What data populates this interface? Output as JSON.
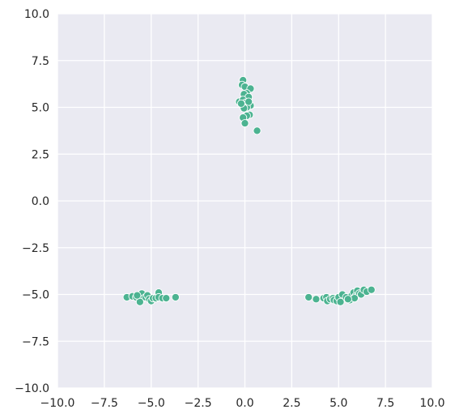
{
  "chart_data": {
    "type": "scatter",
    "title": "",
    "xlabel": "",
    "ylabel": "",
    "xlim": [
      -10,
      10
    ],
    "ylim": [
      -10,
      10
    ],
    "grid": true,
    "xticks": [
      "−10.0",
      "−7.5",
      "−5.0",
      "−2.5",
      "0.0",
      "2.5",
      "5.0",
      "7.5",
      "10.0"
    ],
    "yticks": [
      "−10.0",
      "−7.5",
      "−5.0",
      "−2.5",
      "0.0",
      "2.5",
      "5.0",
      "7.5",
      "10.0"
    ],
    "xtick_values": [
      -10,
      -7.5,
      -5,
      -2.5,
      0,
      2.5,
      5,
      7.5,
      10
    ],
    "ytick_values": [
      -10,
      -7.5,
      -5,
      -2.5,
      0,
      2.5,
      5,
      7.5,
      10
    ],
    "colors": {
      "background": "#eaeaf2",
      "grid": "#ffffff",
      "marker": "#4cb391",
      "marker_edge": "#ffffff"
    },
    "series": [
      {
        "points": [
          [
            -0.1,
            6.45
          ],
          [
            -0.15,
            6.2
          ],
          [
            0.0,
            6.1
          ],
          [
            0.3,
            6.0
          ],
          [
            0.1,
            5.75
          ],
          [
            -0.05,
            5.7
          ],
          [
            0.2,
            5.55
          ],
          [
            -0.3,
            5.3
          ],
          [
            -0.1,
            5.4
          ],
          [
            0.05,
            5.25
          ],
          [
            0.3,
            5.1
          ],
          [
            0.1,
            5.0
          ],
          [
            -0.05,
            4.95
          ],
          [
            -0.2,
            5.2
          ],
          [
            0.25,
            4.6
          ],
          [
            0.1,
            4.55
          ],
          [
            -0.1,
            4.45
          ],
          [
            0.0,
            4.15
          ],
          [
            0.65,
            3.75
          ],
          [
            0.2,
            5.3
          ],
          [
            -6.3,
            -5.15
          ],
          [
            -6.0,
            -5.1
          ],
          [
            -5.8,
            -5.15
          ],
          [
            -5.6,
            -5.05
          ],
          [
            -5.5,
            -4.95
          ],
          [
            -5.55,
            -5.25
          ],
          [
            -5.3,
            -5.15
          ],
          [
            -5.2,
            -5.05
          ],
          [
            -5.1,
            -5.25
          ],
          [
            -5.0,
            -5.35
          ],
          [
            -4.9,
            -5.2
          ],
          [
            -4.75,
            -5.2
          ],
          [
            -4.6,
            -4.9
          ],
          [
            -4.6,
            -5.15
          ],
          [
            -4.4,
            -5.2
          ],
          [
            -4.2,
            -5.2
          ],
          [
            -3.7,
            -5.15
          ],
          [
            -5.6,
            -5.4
          ],
          [
            -5.75,
            -5.05
          ],
          [
            3.4,
            -5.15
          ],
          [
            3.8,
            -5.25
          ],
          [
            4.2,
            -5.2
          ],
          [
            4.35,
            -5.15
          ],
          [
            4.4,
            -5.35
          ],
          [
            4.55,
            -5.25
          ],
          [
            4.7,
            -5.2
          ],
          [
            4.75,
            -5.3
          ],
          [
            4.9,
            -5.35
          ],
          [
            5.0,
            -5.15
          ],
          [
            5.1,
            -5.4
          ],
          [
            5.2,
            -5.0
          ],
          [
            5.4,
            -5.15
          ],
          [
            5.6,
            -5.3
          ],
          [
            5.7,
            -5.05
          ],
          [
            5.8,
            -4.9
          ],
          [
            5.9,
            -5.1
          ],
          [
            6.0,
            -4.8
          ],
          [
            6.1,
            -4.95
          ],
          [
            6.2,
            -5.0
          ],
          [
            6.35,
            -4.75
          ],
          [
            6.5,
            -4.85
          ],
          [
            6.75,
            -4.75
          ],
          [
            5.85,
            -5.2
          ],
          [
            5.5,
            -5.25
          ]
        ]
      }
    ]
  }
}
